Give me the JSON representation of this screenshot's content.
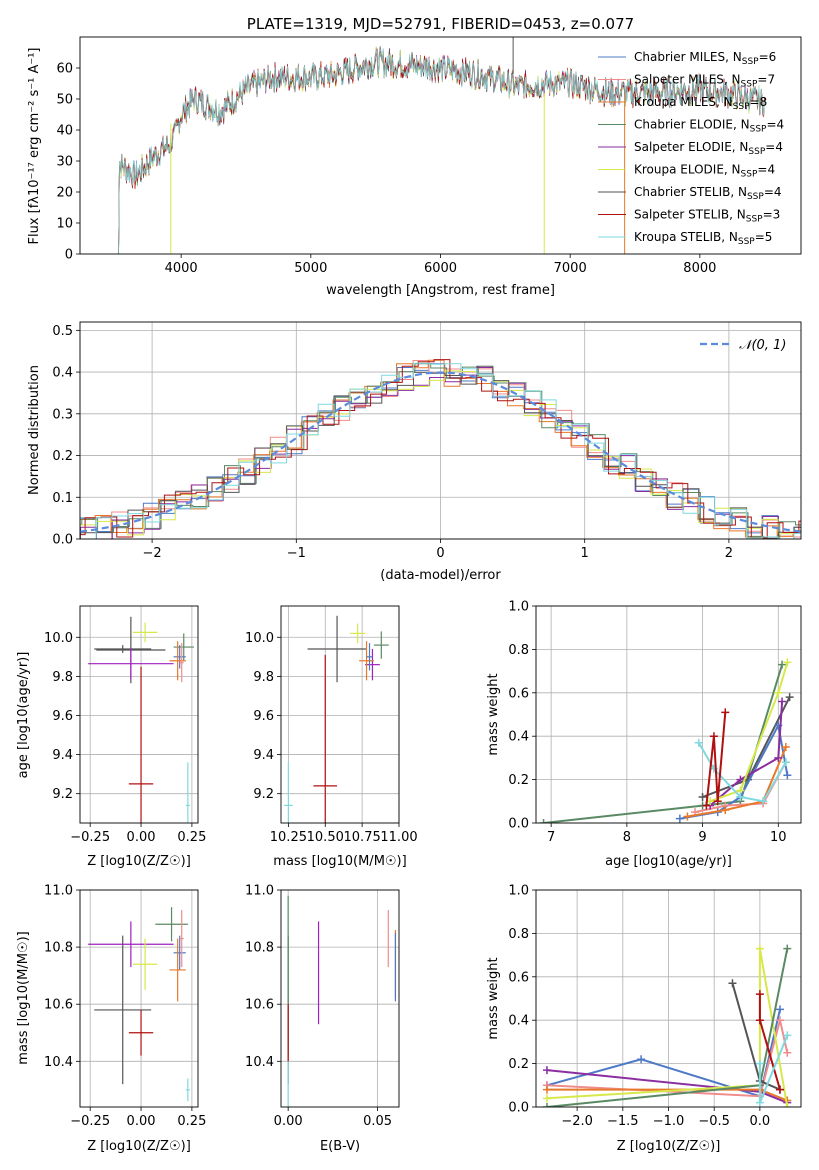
{
  "chart_data": [
    {
      "id": "spectrum",
      "type": "line",
      "title": "PLATE=1319, MJD=52791, FIBERID=0453, z=0.077",
      "xlabel": "wavelength [Angstrom, rest frame]",
      "ylabel": "Flux [fλ10⁻¹⁷ erg cm⁻² s⁻¹ A⁻¹]",
      "xlim": [
        3220,
        8780
      ],
      "ylim": [
        0,
        70
      ],
      "xticks": [
        4000,
        5000,
        6000,
        7000,
        8000
      ],
      "yticks": [
        0,
        10,
        20,
        30,
        40,
        50,
        60
      ],
      "grid": false,
      "legend_position": "top-right",
      "legend": [
        {
          "name": "Chabrier MILES, N",
          "sub": "SSP",
          "tail": "=6",
          "color": "#4e79c7"
        },
        {
          "name": "Salpeter MILES, N",
          "sub": "SSP",
          "tail": "=7",
          "color": "#f08c8c"
        },
        {
          "name": "Kroupa MILES, N",
          "sub": "SSP",
          "tail": "=8",
          "color": "#e8782a"
        },
        {
          "name": "Chabrier ELODIE, N",
          "sub": "SSP",
          "tail": "=4",
          "color": "#5a8a64"
        },
        {
          "name": "Salpeter ELODIE, N",
          "sub": "SSP",
          "tail": "=4",
          "color": "#8a2ea0"
        },
        {
          "name": "Kroupa ELODIE, N",
          "sub": "SSP",
          "tail": "=4",
          "color": "#d7e84a"
        },
        {
          "name": "Chabrier STELIB, N",
          "sub": "SSP",
          "tail": "=4",
          "color": "#555555"
        },
        {
          "name": "Salpeter STELIB, N",
          "sub": "SSP",
          "tail": "=3",
          "color": "#b01010"
        },
        {
          "name": "Kroupa STELIB, N",
          "sub": "SSP",
          "tail": "=5",
          "color": "#7fd9df"
        }
      ],
      "spectrum_shape": {
        "x": [
          3500,
          3650,
          3800,
          3900,
          3950,
          4000,
          4100,
          4300,
          4500,
          4700,
          5000,
          5200,
          5500,
          6000,
          6300,
          6600,
          6800,
          7000,
          7300,
          7500,
          7700,
          8000,
          8200,
          8400,
          8500
        ],
        "y": [
          30,
          25,
          32,
          35,
          38,
          45,
          50,
          46,
          53,
          57,
          57,
          58,
          62,
          60,
          58,
          54,
          55,
          55,
          52,
          52,
          52,
          53,
          52,
          50,
          49
        ]
      }
    },
    {
      "id": "residuals",
      "type": "histogram",
      "xlabel": "(data-model)/error",
      "ylabel": "Normed distribution",
      "xlim": [
        -2.5,
        2.5
      ],
      "ylim": [
        0,
        0.52
      ],
      "xticks": [
        -2,
        -1,
        0,
        1,
        2
      ],
      "yticks": [
        0.0,
        0.1,
        0.2,
        0.3,
        0.4,
        0.5
      ],
      "grid": true,
      "legend_label": "𝒩(0, 1)",
      "legend_position": "top-right",
      "bin_width": 0.11,
      "series_colors": [
        "#4e79c7",
        "#f08c8c",
        "#e8782a",
        "#5a8a64",
        "#8a2ea0",
        "#d7e84a",
        "#555555",
        "#b01010",
        "#7fd9df"
      ]
    },
    {
      "id": "age_vs_Z",
      "type": "scatter",
      "xlabel": "Z [log10(Z/Z☉)]",
      "ylabel": "age  [log10(age/yr)]",
      "xlim": [
        -0.3,
        0.28
      ],
      "ylim": [
        9.05,
        10.16
      ],
      "xticks": [
        -0.25,
        0.0,
        0.25
      ],
      "xticklabels": [
        "−0.25",
        "0.00",
        "0.25"
      ],
      "yticks": [
        9.2,
        9.4,
        9.6,
        9.8,
        10.0
      ],
      "grid": true,
      "points": [
        {
          "x": -0.05,
          "y": 9.935,
          "xerr": 0.17,
          "yerr": 0.17,
          "color": "#555555"
        },
        {
          "x": -0.09,
          "y": 9.94,
          "xerr": 0.14,
          "yerr": 0.02,
          "color": "#555555"
        },
        {
          "x": -0.05,
          "y": 9.865,
          "xerr": 0.21,
          "yerr": 0.08,
          "color": "#a020c0"
        },
        {
          "x": 0.02,
          "y": 10.025,
          "xerr": 0.06,
          "yerr": 0.05,
          "color": "#d7e84a"
        },
        {
          "x": 0.0,
          "y": 9.25,
          "xerr": 0.06,
          "yerr": 0.6,
          "color": "#b01010"
        },
        {
          "x": 0.21,
          "y": 9.95,
          "xerr": 0.05,
          "yerr": 0.07,
          "color": "#5a8a64"
        },
        {
          "x": 0.19,
          "y": 9.9,
          "xerr": 0.03,
          "yerr": 0.06,
          "color": "#4e79c7"
        },
        {
          "x": 0.18,
          "y": 9.88,
          "xerr": 0.04,
          "yerr": 0.1,
          "color": "#e8782a"
        },
        {
          "x": 0.2,
          "y": 9.87,
          "xerr": 0.01,
          "yerr": 0.1,
          "color": "#f08c8c"
        },
        {
          "x": 0.23,
          "y": 9.14,
          "xerr": 0.01,
          "yerr": 0.22,
          "color": "#7fd9df"
        }
      ]
    },
    {
      "id": "age_vs_mass",
      "type": "scatter",
      "xlabel": "mass [log10(M/M☉)]",
      "ylabel": "",
      "xlim": [
        10.2,
        11.0
      ],
      "ylim": [
        9.05,
        10.16
      ],
      "xticks": [
        10.25,
        10.5,
        10.75,
        11.0
      ],
      "xticklabels": [
        "10.25",
        "10.50",
        "10.75",
        "11.00"
      ],
      "yticks": [
        9.2,
        9.4,
        9.6,
        9.8,
        10.0
      ],
      "grid": true,
      "points": [
        {
          "x": 10.58,
          "y": 9.94,
          "xerr": 0.2,
          "yerr": 0.17,
          "color": "#555555"
        },
        {
          "x": 10.72,
          "y": 10.02,
          "xerr": 0.05,
          "yerr": 0.05,
          "color": "#d7e84a"
        },
        {
          "x": 10.82,
          "y": 9.86,
          "xerr": 0.05,
          "yerr": 0.08,
          "color": "#a020c0"
        },
        {
          "x": 10.88,
          "y": 9.96,
          "xerr": 0.05,
          "yerr": 0.07,
          "color": "#5a8a64"
        },
        {
          "x": 10.78,
          "y": 9.88,
          "xerr": 0.05,
          "yerr": 0.1,
          "color": "#e8782a"
        },
        {
          "x": 10.8,
          "y": 9.9,
          "xerr": 0.02,
          "yerr": 0.07,
          "color": "#4e79c7"
        },
        {
          "x": 10.5,
          "y": 9.24,
          "xerr": 0.08,
          "yerr": 0.67,
          "color": "#b01010"
        },
        {
          "x": 10.25,
          "y": 9.14,
          "xerr": 0.03,
          "yerr": 0.22,
          "color": "#7fd9df"
        }
      ]
    },
    {
      "id": "mass_weight_vs_age",
      "type": "line",
      "xlabel": "age  [log10(age/yr)]",
      "ylabel": "mass weight",
      "xlim": [
        6.8,
        10.3
      ],
      "ylim": [
        0,
        1.0
      ],
      "xticks": [
        7,
        8,
        9,
        10
      ],
      "yticks": [
        0.0,
        0.2,
        0.4,
        0.6,
        0.8,
        1.0
      ],
      "grid": true,
      "series": [
        {
          "color": "#5a8a64",
          "x": [
            6.9,
            9.0,
            9.5,
            10.05
          ],
          "y": [
            0.0,
            0.08,
            0.1,
            0.73
          ]
        },
        {
          "color": "#555555",
          "x": [
            9.0,
            9.6,
            10.15
          ],
          "y": [
            0.12,
            0.2,
            0.58
          ]
        },
        {
          "color": "#4e79c7",
          "x": [
            8.7,
            9.2,
            9.5,
            10.0,
            10.12
          ],
          "y": [
            0.02,
            0.05,
            0.12,
            0.45,
            0.22
          ]
        },
        {
          "color": "#f08c8c",
          "x": [
            8.9,
            9.3,
            9.8,
            10.1
          ],
          "y": [
            0.05,
            0.08,
            0.09,
            0.28
          ]
        },
        {
          "color": "#e8782a",
          "x": [
            8.8,
            9.3,
            9.8,
            10.1
          ],
          "y": [
            0.03,
            0.06,
            0.1,
            0.35
          ]
        },
        {
          "color": "#8a2ea0",
          "x": [
            9.1,
            9.5,
            10.0,
            10.05
          ],
          "y": [
            0.08,
            0.2,
            0.3,
            0.56
          ]
        },
        {
          "color": "#d7e84a",
          "x": [
            9.1,
            9.5,
            10.0,
            10.12
          ],
          "y": [
            0.1,
            0.15,
            0.6,
            0.74
          ]
        },
        {
          "color": "#7fd9df",
          "x": [
            8.95,
            9.15,
            9.5,
            9.8,
            10.1
          ],
          "y": [
            0.37,
            0.25,
            0.12,
            0.1,
            0.28
          ]
        },
        {
          "color": "#b01010",
          "x": [
            9.05,
            9.15,
            9.2,
            9.3
          ],
          "y": [
            0.08,
            0.4,
            0.1,
            0.51
          ]
        }
      ]
    },
    {
      "id": "mass_vs_Z",
      "type": "scatter",
      "xlabel": "Z [log10(Z/Z☉)]",
      "ylabel": "mass [log10(M/M☉)]",
      "xlim": [
        -0.3,
        0.28
      ],
      "ylim": [
        10.24,
        11.0
      ],
      "xticks": [
        -0.25,
        0.0,
        0.25
      ],
      "xticklabels": [
        "−0.25",
        "0.00",
        "0.25"
      ],
      "yticks": [
        10.4,
        10.6,
        10.8,
        11.0
      ],
      "grid": true,
      "points": [
        {
          "x": -0.09,
          "y": 10.58,
          "xerr": 0.14,
          "yerr": 0.26,
          "color": "#555555"
        },
        {
          "x": -0.05,
          "y": 10.81,
          "xerr": 0.21,
          "yerr": 0.08,
          "color": "#a020c0"
        },
        {
          "x": 0.02,
          "y": 10.74,
          "xerr": 0.06,
          "yerr": 0.09,
          "color": "#d7e84a"
        },
        {
          "x": 0.0,
          "y": 10.5,
          "xerr": 0.06,
          "yerr": 0.08,
          "color": "#b01010"
        },
        {
          "x": 0.15,
          "y": 10.88,
          "xerr": 0.08,
          "yerr": 0.06,
          "color": "#5a8a64"
        },
        {
          "x": 0.19,
          "y": 10.78,
          "xerr": 0.03,
          "yerr": 0.06,
          "color": "#4e79c7"
        },
        {
          "x": 0.18,
          "y": 10.72,
          "xerr": 0.04,
          "yerr": 0.11,
          "color": "#e8782a"
        },
        {
          "x": 0.2,
          "y": 10.83,
          "xerr": 0.01,
          "yerr": 0.1,
          "color": "#f08c8c"
        },
        {
          "x": 0.23,
          "y": 10.3,
          "xerr": 0.01,
          "yerr": 0.04,
          "color": "#7fd9df"
        }
      ]
    },
    {
      "id": "mass_vs_EBV",
      "type": "scatter",
      "xlabel": "E(B-V)",
      "ylabel": "",
      "xlim": [
        -0.004,
        0.062
      ],
      "ylim": [
        10.24,
        11.0
      ],
      "xticks": [
        0.0,
        0.05
      ],
      "xticklabels": [
        "0.00",
        "0.05"
      ],
      "yticks": [
        10.4,
        10.6,
        10.8,
        11.0
      ],
      "grid": true,
      "points": [
        {
          "x": 0.0,
          "y": 10.58,
          "xerr": 0.0,
          "yerr": 0.26,
          "color": "#555555"
        },
        {
          "x": 0.0,
          "y": 10.7,
          "xerr": 0.0,
          "yerr": 0.28,
          "color": "#5a8a64"
        },
        {
          "x": 0.0,
          "y": 10.5,
          "xerr": 0.0,
          "yerr": 0.1,
          "color": "#b01010"
        },
        {
          "x": 0.0,
          "y": 10.32,
          "xerr": 0.0,
          "yerr": 0.08,
          "color": "#7fd9df"
        },
        {
          "x": 0.017,
          "y": 10.71,
          "xerr": 0.0,
          "yerr": 0.18,
          "color": "#a020c0"
        },
        {
          "x": 0.056,
          "y": 10.83,
          "xerr": 0.0,
          "yerr": 0.1,
          "color": "#f08c8c"
        },
        {
          "x": 0.06,
          "y": 10.74,
          "xerr": 0.0,
          "yerr": 0.12,
          "color": "#e8782a"
        },
        {
          "x": 0.06,
          "y": 10.73,
          "xerr": 0.0,
          "yerr": 0.12,
          "color": "#4e79c7"
        }
      ]
    },
    {
      "id": "mass_weight_vs_Z",
      "type": "line",
      "xlabel": "Z [log10(Z/Z☉)]",
      "ylabel": "mass weight",
      "xlim": [
        -2.45,
        0.45
      ],
      "ylim": [
        0,
        1.0
      ],
      "xticks": [
        -2.0,
        -1.5,
        -1.0,
        -0.5,
        0.0
      ],
      "xticklabels": [
        "−2.0",
        "−1.5",
        "−1.0",
        "−0.5",
        "0.0"
      ],
      "yticks": [
        0.0,
        0.2,
        0.4,
        0.6,
        0.8,
        1.0
      ],
      "grid": true,
      "series": [
        {
          "color": "#4e79c7",
          "x": [
            -2.33,
            -1.3,
            0.0,
            0.22
          ],
          "y": [
            0.1,
            0.22,
            0.05,
            0.45
          ]
        },
        {
          "color": "#8a2ea0",
          "x": [
            -2.33,
            0.0,
            0.3
          ],
          "y": [
            0.17,
            0.07,
            0.02
          ]
        },
        {
          "color": "#f08c8c",
          "x": [
            -2.33,
            0.0,
            0.22,
            0.3
          ],
          "y": [
            0.1,
            0.05,
            0.4,
            0.25
          ]
        },
        {
          "color": "#e8782a",
          "x": [
            -2.33,
            0.0,
            0.3
          ],
          "y": [
            0.08,
            0.08,
            0.03
          ]
        },
        {
          "color": "#d7e84a",
          "x": [
            -2.33,
            0.0,
            0.0,
            0.3
          ],
          "y": [
            0.04,
            0.1,
            0.73,
            0.0
          ]
        },
        {
          "color": "#5a8a64",
          "x": [
            -2.33,
            0.0,
            0.3
          ],
          "y": [
            0.0,
            0.1,
            0.73
          ]
        },
        {
          "color": "#555555",
          "x": [
            -0.3,
            0.0,
            0.22
          ],
          "y": [
            0.57,
            0.12,
            0.08
          ]
        },
        {
          "color": "#b01010",
          "x": [
            0.0,
            0.0,
            0.22
          ],
          "y": [
            0.52,
            0.4,
            0.08
          ]
        },
        {
          "color": "#7fd9df",
          "x": [
            0.0,
            0.0,
            0.3
          ],
          "y": [
            0.2,
            0.02,
            0.33
          ]
        }
      ]
    }
  ]
}
